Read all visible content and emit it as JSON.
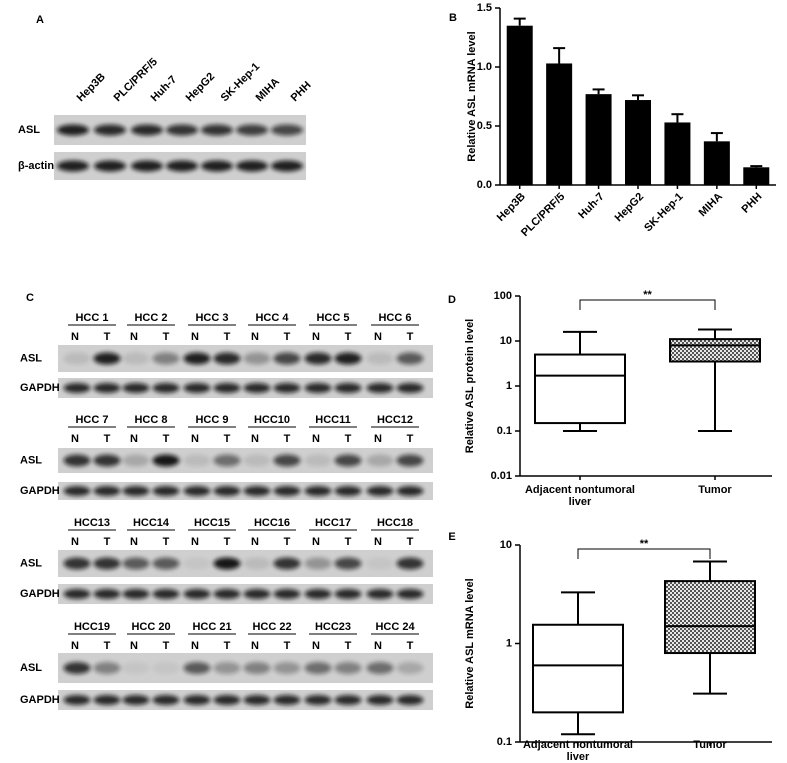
{
  "blots": [
    {
      "panel": "A",
      "lanes": [
        "Hep3B",
        "PLC/PRF/5",
        "Huh-7",
        "HepG2",
        "SK-Hep-1",
        "MIHA",
        "PHH"
      ],
      "rows": [
        "ASL",
        "β-actin"
      ]
    },
    {
      "panel": "C",
      "groups": [
        "HCC 1",
        "HCC 2",
        "HCC 3",
        "HCC 4",
        "HCC 5",
        "HCC 6",
        "HCC 7",
        "HCC 8",
        "HCC 9",
        "HCC10",
        "HCC11",
        "HCC12",
        "HCC13",
        "HCC14",
        "HCC15",
        "HCC16",
        "HCC17",
        "HCC18",
        "HCC19",
        "HCC 20",
        "HCC 21",
        "HCC 22",
        "HCC23",
        "HCC 24"
      ],
      "lanes": [
        "N",
        "T"
      ],
      "rows": [
        "ASL",
        "GAPDH"
      ]
    }
  ],
  "chart_data": [
    {
      "type": "bar",
      "panel": "B",
      "y_label": "Relative ASL mRNA level",
      "categories": [
        "Hep3B",
        "PLC/PRF/5",
        "Huh-7",
        "HepG2",
        "SK-Hep-1",
        "MIHA",
        "PHH"
      ],
      "values": [
        1.35,
        1.03,
        0.77,
        0.72,
        0.53,
        0.37,
        0.15
      ],
      "errors": [
        0.06,
        0.13,
        0.04,
        0.04,
        0.07,
        0.07,
        0.01
      ],
      "color": "#000000",
      "ylim": [
        0,
        1.5
      ],
      "yticks": [
        {
          "value": 0,
          "label": "0.0"
        },
        0.5,
        {
          "value": 1,
          "label": "1.0"
        },
        1.5
      ]
    },
    {
      "type": "box",
      "panel": "D",
      "y_label": "Relative ASL protein level",
      "log_scale": true,
      "annotation": "**",
      "categories": [
        "Adjacent nontumoral liver",
        "Tumor"
      ],
      "min": [
        0.1,
        0.1
      ],
      "q1": [
        0.15,
        3.5
      ],
      "median": [
        1.7,
        8
      ],
      "q3": [
        5,
        11
      ],
      "max": [
        16,
        18
      ],
      "ylim": [
        0.01,
        100
      ],
      "yticks": [
        0.01,
        0.1,
        1,
        10,
        100
      ]
    },
    {
      "type": "box",
      "panel": "E",
      "y_label": "Relative ASL mRNA level",
      "log_scale": true,
      "annotation": "**",
      "categories": [
        "Adjacent nontumoral liver",
        "Tumor"
      ],
      "min": [
        0.12,
        0.31
      ],
      "q1": [
        0.2,
        0.8
      ],
      "median": [
        0.6,
        1.5
      ],
      "q3": [
        1.55,
        4.3
      ],
      "max": [
        3.3,
        6.8
      ],
      "ylim": [
        0.1,
        10
      ],
      "yticks": [
        0.1,
        1,
        10
      ]
    }
  ]
}
